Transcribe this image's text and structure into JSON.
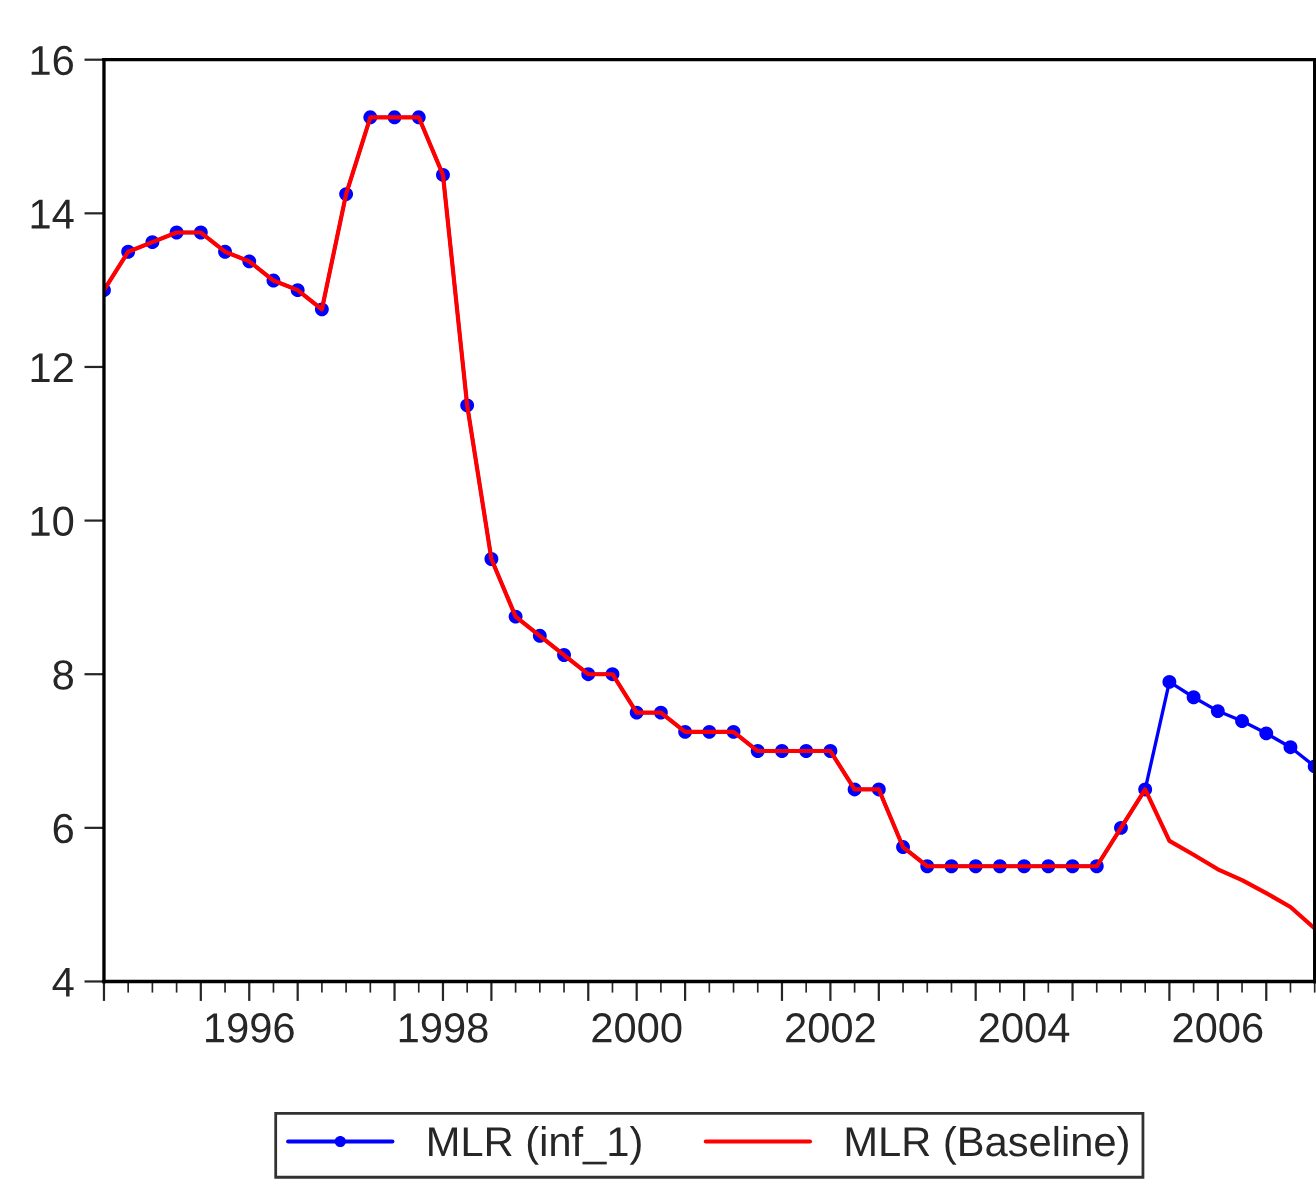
{
  "chart_data": {
    "type": "line",
    "x": [
      1995.0,
      1995.25,
      1995.5,
      1995.75,
      1996.0,
      1996.25,
      1996.5,
      1996.75,
      1997.0,
      1997.25,
      1997.5,
      1997.75,
      1998.0,
      1998.25,
      1998.5,
      1998.75,
      1999.0,
      1999.25,
      1999.5,
      1999.75,
      2000.0,
      2000.25,
      2000.5,
      2000.75,
      2001.0,
      2001.25,
      2001.5,
      2001.75,
      2002.0,
      2002.25,
      2002.5,
      2002.75,
      2003.0,
      2003.25,
      2003.5,
      2003.75,
      2004.0,
      2004.25,
      2004.5,
      2004.75,
      2005.0,
      2005.25,
      2005.5,
      2005.75,
      2006.0,
      2006.25,
      2006.5,
      2006.75,
      2007.0,
      2007.25,
      2007.5
    ],
    "series": [
      {
        "name": "MLR (inf_1)",
        "color": "#0000ff",
        "marker": "circle",
        "values": [
          13.0,
          13.5,
          13.625,
          13.75,
          13.75,
          13.5,
          13.375,
          13.125,
          13.0,
          12.75,
          14.25,
          15.25,
          15.25,
          15.25,
          14.5,
          11.5,
          9.5,
          8.75,
          8.5,
          8.25,
          8.0,
          8.0,
          7.5,
          7.5,
          7.25,
          7.25,
          7.25,
          7.0,
          7.0,
          7.0,
          7.0,
          6.5,
          6.5,
          5.75,
          5.5,
          5.5,
          5.5,
          5.5,
          5.5,
          5.5,
          5.5,
          5.5,
          6.0,
          6.5,
          7.9,
          7.7,
          7.52,
          7.39,
          7.23,
          7.05,
          6.8
        ]
      },
      {
        "name": "MLR (Baseline)",
        "color": "#ff0000",
        "marker": "none",
        "values": [
          13.0,
          13.5,
          13.625,
          13.75,
          13.75,
          13.5,
          13.375,
          13.125,
          13.0,
          12.75,
          14.25,
          15.25,
          15.25,
          15.25,
          14.5,
          11.5,
          9.5,
          8.75,
          8.5,
          8.25,
          8.0,
          8.0,
          7.5,
          7.5,
          7.25,
          7.25,
          7.25,
          7.0,
          7.0,
          7.0,
          7.0,
          6.5,
          6.5,
          5.75,
          5.5,
          5.5,
          5.5,
          5.5,
          5.5,
          5.5,
          5.5,
          5.5,
          6.0,
          6.5,
          5.83,
          5.65,
          5.46,
          5.32,
          5.15,
          4.97,
          4.69
        ]
      }
    ],
    "xlim": [
      1995.0,
      2007.5
    ],
    "xticks": [
      {
        "value": 1995,
        "label": null
      },
      {
        "value": 1996,
        "label": null
      },
      {
        "value": 1996.5,
        "label": "1996"
      },
      {
        "value": 1997,
        "label": null
      },
      {
        "value": 1998,
        "label": null
      },
      {
        "value": 1998.5,
        "label": "1998"
      },
      {
        "value": 1999,
        "label": null
      },
      {
        "value": 2000,
        "label": null
      },
      {
        "value": 2000.5,
        "label": "2000"
      },
      {
        "value": 2001,
        "label": null
      },
      {
        "value": 2002,
        "label": null
      },
      {
        "value": 2002.5,
        "label": "2002"
      },
      {
        "value": 2003,
        "label": null
      },
      {
        "value": 2004,
        "label": null
      },
      {
        "value": 2004.5,
        "label": "2004"
      },
      {
        "value": 2005,
        "label": null
      },
      {
        "value": 2006,
        "label": null
      },
      {
        "value": 2006.5,
        "label": "2006"
      },
      {
        "value": 2007,
        "label": null
      }
    ],
    "ylim": [
      4,
      16
    ],
    "yticks": [
      4,
      6,
      8,
      10,
      12,
      14,
      16
    ],
    "grid": false,
    "legend": "bottom",
    "line_style": "solid"
  }
}
